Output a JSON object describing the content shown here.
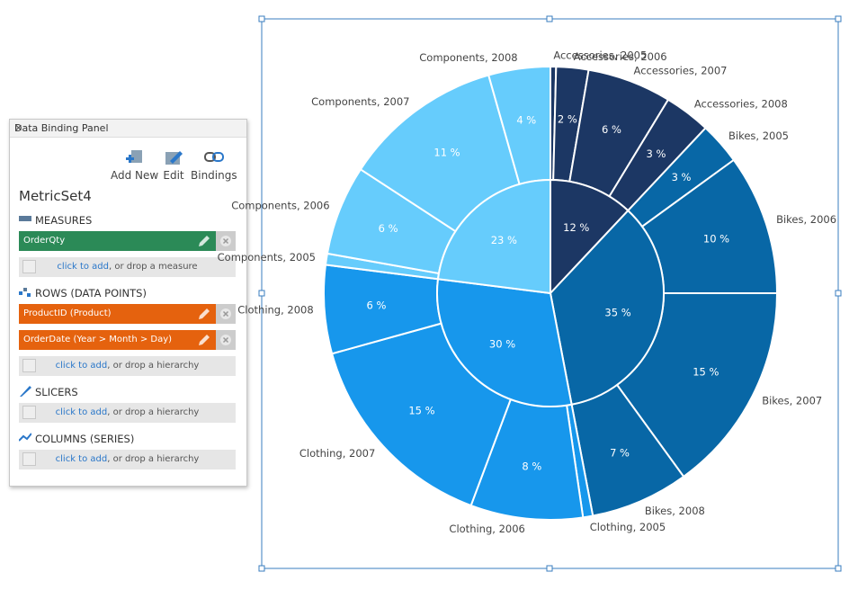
{
  "panel": {
    "title": "Data Binding Panel",
    "toolbar": [
      "Add New",
      "Edit",
      "Bindings"
    ],
    "metric_set": "MetricSet4",
    "sections": [
      {
        "title": "MEASURES",
        "item_color": "#2b8a57",
        "items": [
          "OrderQty"
        ],
        "add_link": "click to add",
        "add_hint": ", or drop a measure"
      },
      {
        "title": "ROWS (DATA POINTS)",
        "item_color": "#e5620e",
        "items": [
          "ProductID (Product)",
          "OrderDate (Year > Month > Day)"
        ],
        "add_link": "click to add",
        "add_hint": ", or drop a hierarchy"
      },
      {
        "title": "SLICERS",
        "item_color": "#e5620e",
        "items": [],
        "add_link": "click to add",
        "add_hint": ", or drop a hierarchy"
      },
      {
        "title": "COLUMNS (SERIES)",
        "item_color": "#e5620e",
        "items": [],
        "add_link": "click to add",
        "add_hint": ", or drop a hierarchy"
      }
    ]
  },
  "chart_data": {
    "type": "sunburst",
    "series": [
      {
        "name": "Accessories",
        "color": "#1c3764",
        "value": 12,
        "value_label": "12 %",
        "children": {
          "labels": [
            "Accessories, 2005",
            "Accessories, 2006",
            "Accessories, 2007",
            "Accessories, 2008"
          ],
          "values": [
            0.4,
            2.3,
            6,
            3.3
          ],
          "value_labels": [
            null,
            "2 %",
            "6 %",
            "3 %"
          ]
        }
      },
      {
        "name": "Bikes",
        "color": "#0867a6",
        "value": 35,
        "value_label": "35 %",
        "children": {
          "labels": [
            "Bikes, 2005",
            "Bikes, 2006",
            "Bikes, 2007",
            "Bikes, 2008"
          ],
          "values": [
            3,
            10,
            15,
            7
          ],
          "value_labels": [
            "3 %",
            "10 %",
            "15 %",
            "7 %"
          ]
        }
      },
      {
        "name": "Clothing",
        "color": "#1797ec",
        "value": 30,
        "value_label": "30 %",
        "children": {
          "labels": [
            "Clothing, 2005",
            "Clothing, 2006",
            "Clothing, 2007",
            "Clothing, 2008"
          ],
          "values": [
            0.7,
            8,
            15,
            6.3
          ],
          "value_labels": [
            null,
            "8 %",
            "15 %",
            "6 %"
          ]
        }
      },
      {
        "name": "Components",
        "color": "#66ccfc",
        "value": 23,
        "value_label": "23 %",
        "children": {
          "labels": [
            "Components, 2005",
            "Components, 2006",
            "Components, 2007",
            "Components, 2008"
          ],
          "values": [
            0.8,
            6.4,
            11.4,
            4.4
          ],
          "value_labels": [
            null,
            "6 %",
            "11 %",
            "4 %"
          ]
        }
      }
    ]
  }
}
